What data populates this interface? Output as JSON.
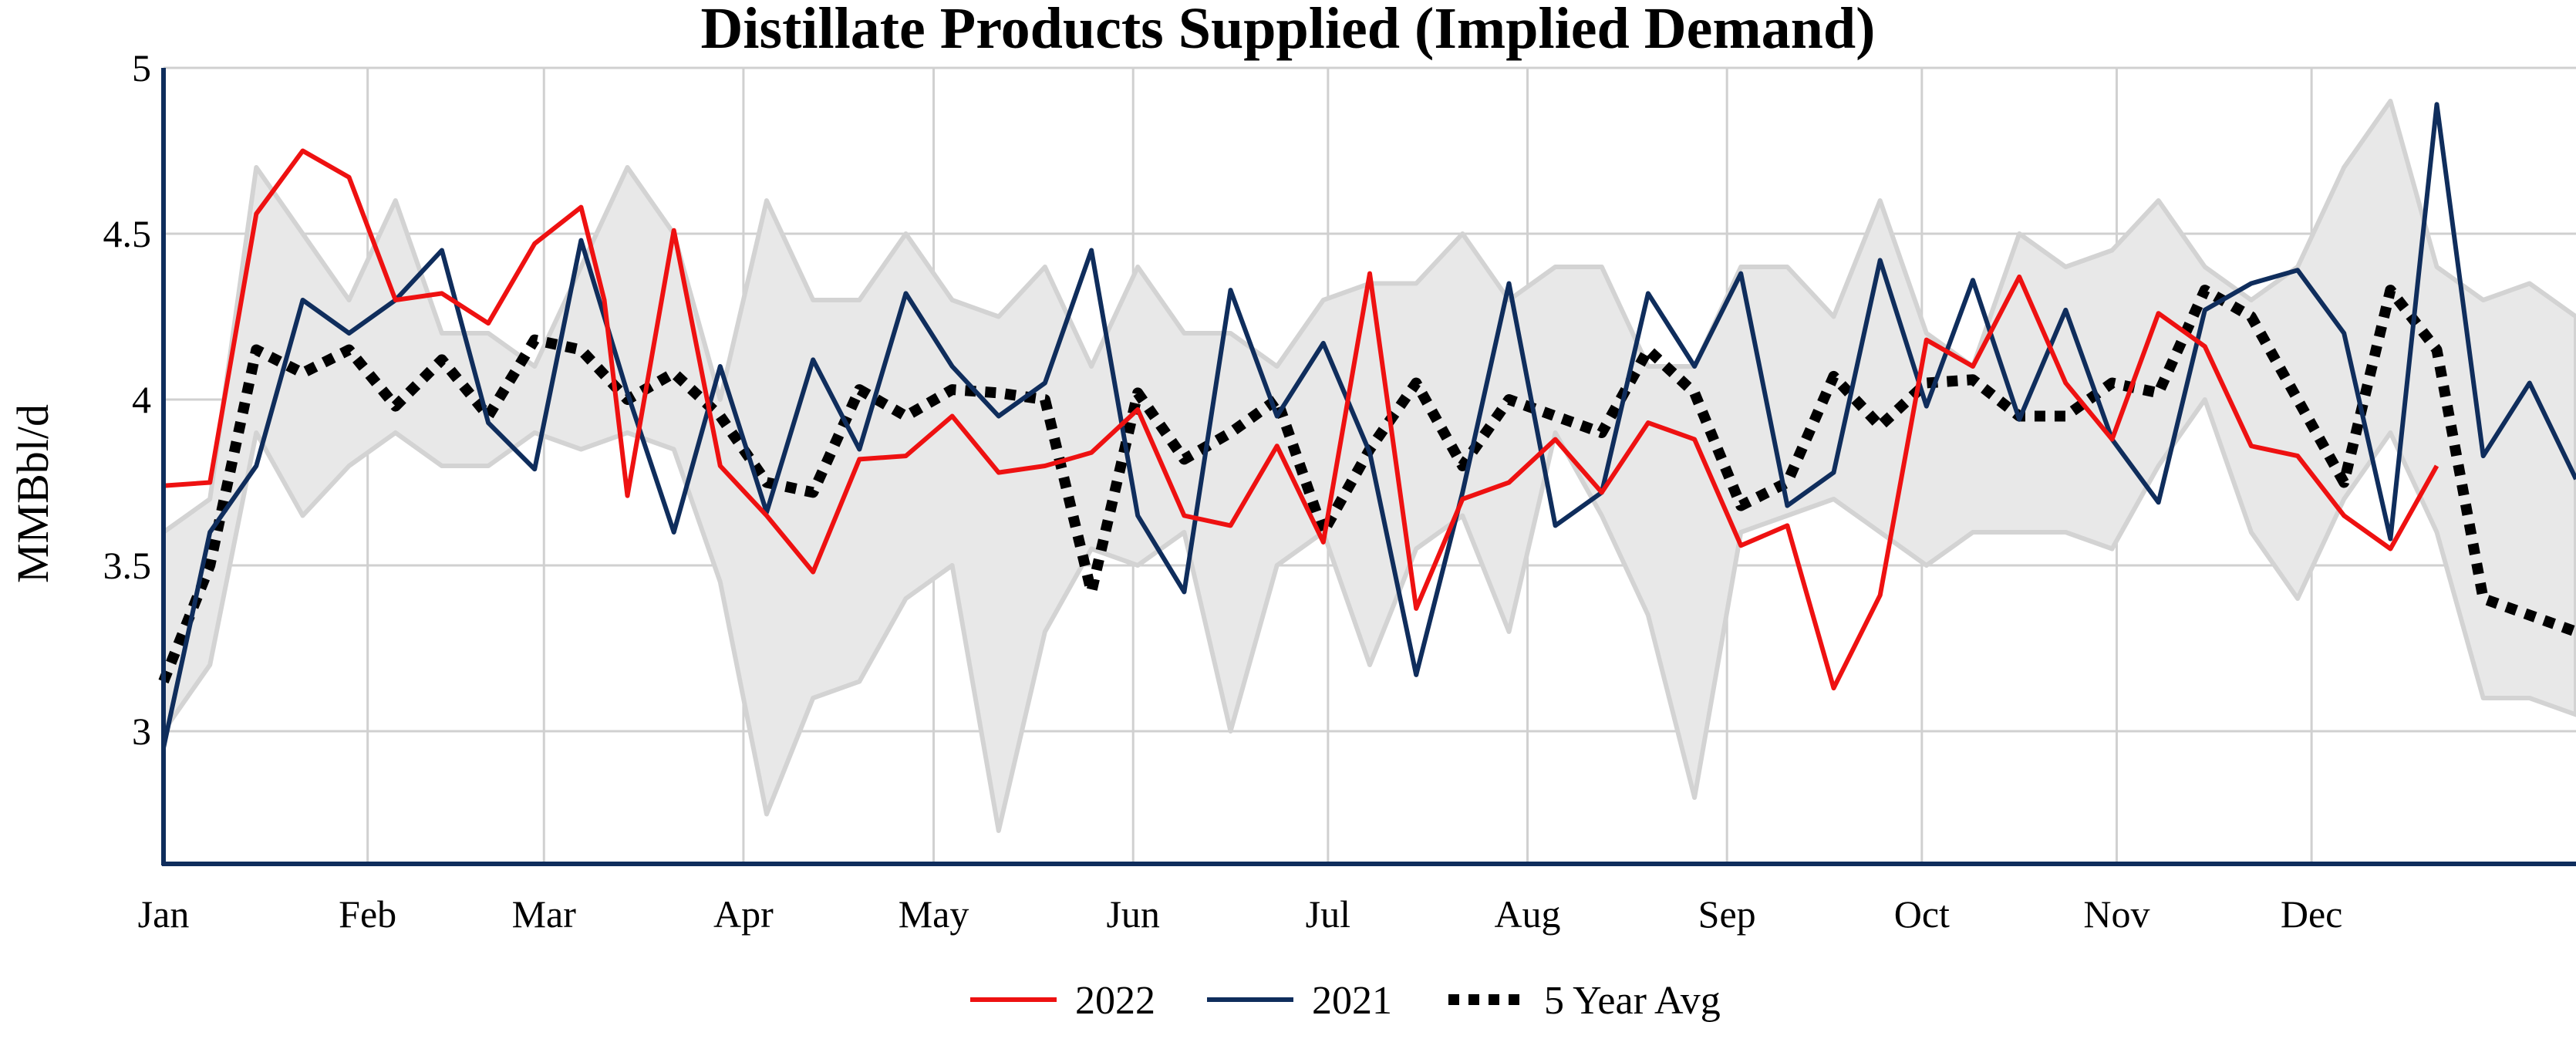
{
  "chart_data": {
    "type": "line",
    "title": "Distillate Products Supplied (Implied Demand)",
    "xlabel": "",
    "ylabel": "MMBbl/d",
    "ylim": [
      2.6,
      5
    ],
    "yticks": [
      3,
      3.5,
      4,
      4.5,
      5
    ],
    "ytick_labels": [
      "3",
      "3.5",
      "4",
      "4.5",
      "5"
    ],
    "xlim": [
      1,
      53
    ],
    "x_unit": "week of year",
    "months": [
      "Jan",
      "Feb",
      "Mar",
      "Apr",
      "May",
      "Jun",
      "Jul",
      "Aug",
      "Sep",
      "Oct",
      "Nov",
      "Dec"
    ],
    "month_weeks": [
      1,
      5.4,
      9.2,
      13.5,
      17.6,
      21.9,
      26.1,
      30.4,
      34.7,
      38.9,
      43.1,
      47.3
    ],
    "grid": true,
    "legend_position": "bottom",
    "band": {
      "color": "#e8e8e8",
      "edge_color": "#d3d3d3",
      "x": [
        1,
        2,
        3,
        4,
        5,
        6,
        7,
        8,
        9,
        10,
        11,
        12,
        13,
        14,
        15,
        16,
        17,
        18,
        19,
        20,
        21,
        22,
        23,
        24,
        25,
        26,
        27,
        28,
        29,
        30,
        31,
        32,
        33,
        34,
        35,
        36,
        37,
        38,
        39,
        40,
        41,
        42,
        43,
        44,
        45,
        46,
        47,
        48,
        49,
        50,
        51,
        52,
        53
      ],
      "upper": [
        3.6,
        3.7,
        4.7,
        4.5,
        4.3,
        4.6,
        4.2,
        4.2,
        4.1,
        4.4,
        4.7,
        4.5,
        4.0,
        4.6,
        4.3,
        4.3,
        4.5,
        4.3,
        4.25,
        4.4,
        4.1,
        4.4,
        4.2,
        4.2,
        4.1,
        4.3,
        4.35,
        4.35,
        4.5,
        4.3,
        4.4,
        4.4,
        4.1,
        4.1,
        4.4,
        4.4,
        4.25,
        4.6,
        4.2,
        4.1,
        4.5,
        4.4,
        4.45,
        4.6,
        4.4,
        4.3,
        4.4,
        4.7,
        4.9,
        4.4,
        4.3,
        4.35,
        4.25
      ],
      "lower": [
        3.0,
        3.2,
        3.9,
        3.65,
        3.8,
        3.9,
        3.8,
        3.8,
        3.9,
        3.85,
        3.9,
        3.85,
        3.45,
        2.75,
        3.1,
        3.15,
        3.4,
        3.5,
        2.7,
        3.3,
        3.55,
        3.5,
        3.6,
        3.0,
        3.5,
        3.6,
        3.2,
        3.55,
        3.65,
        3.3,
        3.9,
        3.65,
        3.35,
        2.8,
        3.6,
        3.65,
        3.7,
        3.6,
        3.5,
        3.6,
        3.6,
        3.6,
        3.55,
        3.8,
        4.0,
        3.6,
        3.4,
        3.7,
        3.9,
        3.6,
        3.1,
        3.1,
        3.05
      ]
    },
    "series": [
      {
        "name": "2022",
        "color": "#ee1111",
        "style": "solid",
        "x": [
          1,
          2,
          3,
          4,
          5,
          6,
          7,
          8,
          9,
          10,
          10.5,
          11,
          12,
          13,
          14,
          15,
          16,
          17,
          18,
          19,
          20,
          21,
          22,
          23,
          24,
          25,
          26,
          27,
          28,
          29,
          30,
          31,
          32,
          33,
          34,
          35,
          36,
          37,
          38,
          39,
          40,
          41,
          42,
          43,
          44,
          45,
          46,
          47,
          48,
          49,
          50
        ],
        "y": [
          3.74,
          3.75,
          4.56,
          4.75,
          4.67,
          4.3,
          4.32,
          4.23,
          4.47,
          4.58,
          4.3,
          3.71,
          4.51,
          3.8,
          3.65,
          3.48,
          3.82,
          3.83,
          3.95,
          3.78,
          3.8,
          3.84,
          3.97,
          3.65,
          3.62,
          3.86,
          3.57,
          4.38,
          3.37,
          3.7,
          3.75,
          3.88,
          3.72,
          3.93,
          3.88,
          3.56,
          3.62,
          3.13,
          3.41,
          4.18,
          4.1,
          4.37,
          4.05,
          3.88,
          4.26,
          4.16,
          3.86,
          3.83,
          3.65,
          3.55,
          3.8
        ]
      },
      {
        "name": "2021",
        "color": "#0f2d5c",
        "style": "solid",
        "x": [
          1,
          2,
          3,
          4,
          5,
          6,
          7,
          8,
          9,
          10,
          11,
          12,
          13,
          14,
          15,
          16,
          17,
          18,
          19,
          20,
          21,
          22,
          23,
          24,
          25,
          26,
          27,
          28,
          29,
          30,
          31,
          32,
          33,
          34,
          35,
          36,
          37,
          38,
          39,
          40,
          41,
          42,
          43,
          44,
          45,
          46,
          47,
          48,
          49,
          50,
          51,
          52,
          53
        ],
        "y": [
          2.95,
          3.6,
          3.8,
          4.3,
          4.2,
          4.3,
          4.45,
          3.93,
          3.79,
          4.48,
          4.02,
          3.6,
          4.1,
          3.66,
          4.12,
          3.85,
          4.32,
          4.1,
          3.95,
          4.05,
          4.45,
          3.65,
          3.42,
          4.33,
          3.95,
          4.17,
          3.84,
          3.17,
          3.72,
          4.35,
          3.62,
          3.72,
          4.32,
          4.1,
          4.38,
          3.68,
          3.78,
          4.42,
          3.98,
          4.36,
          3.94,
          4.27,
          3.88,
          3.69,
          4.27,
          4.35,
          4.39,
          4.2,
          3.58,
          4.89,
          3.83,
          4.05,
          3.76
        ]
      },
      {
        "name": "5 Year Avg",
        "color": "#000000",
        "style": "dotted",
        "x": [
          1,
          2,
          3,
          4,
          5,
          6,
          7,
          8,
          9,
          10,
          11,
          12,
          13,
          14,
          15,
          16,
          17,
          18,
          19,
          20,
          21,
          22,
          23,
          24,
          25,
          26,
          27,
          28,
          29,
          30,
          31,
          32,
          33,
          34,
          35,
          36,
          37,
          38,
          39,
          40,
          41,
          42,
          43,
          44,
          45,
          46,
          47,
          48,
          49,
          50,
          51,
          52,
          53
        ],
        "y": [
          3.15,
          3.5,
          4.15,
          4.08,
          4.15,
          3.98,
          4.12,
          3.95,
          4.18,
          4.15,
          4.0,
          4.08,
          3.95,
          3.75,
          3.72,
          4.03,
          3.95,
          4.03,
          4.02,
          4.0,
          3.42,
          4.02,
          3.82,
          3.9,
          4.0,
          3.6,
          3.85,
          4.05,
          3.8,
          4.0,
          3.95,
          3.9,
          4.15,
          4.02,
          3.68,
          3.75,
          4.07,
          3.92,
          4.05,
          4.06,
          3.95,
          3.95,
          4.05,
          4.02,
          4.33,
          4.25,
          4.0,
          3.75,
          4.33,
          4.15,
          3.4,
          3.35,
          3.3
        ]
      }
    ],
    "legend": [
      {
        "label": "2022",
        "color": "#ee1111",
        "style": "solid"
      },
      {
        "label": "2021",
        "color": "#0f2d5c",
        "style": "solid"
      },
      {
        "label": "5 Year Avg",
        "color": "#000000",
        "style": "dotted"
      }
    ]
  }
}
